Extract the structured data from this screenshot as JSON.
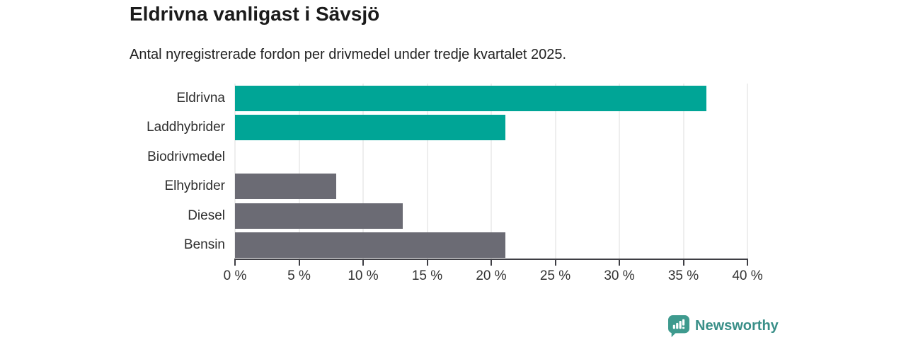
{
  "header": {
    "title": "Eldrivna vanligast i Sävsjö",
    "subtitle": "Antal nyregistrerade fordon per drivmedel under tredje kvartalet 2025."
  },
  "chart_data": {
    "type": "bar",
    "orientation": "horizontal",
    "title": "Eldrivna vanligast i Sävsjö",
    "subtitle": "Antal nyregistrerade fordon per drivmedel under tredje kvartalet 2025.",
    "categories": [
      "Eldrivna",
      "Laddhybrider",
      "Biodrivmedel",
      "Elhybrider",
      "Diesel",
      "Bensin"
    ],
    "values": [
      36.8,
      21.1,
      0,
      7.9,
      13.1,
      21.1
    ],
    "unit": "%",
    "xlim": [
      0,
      40
    ],
    "xticks": [
      0,
      5,
      10,
      15,
      20,
      25,
      30,
      35,
      40
    ],
    "xtick_labels": [
      "0 %",
      "5 %",
      "10 %",
      "15 %",
      "20 %",
      "25 %",
      "30 %",
      "35 %",
      "40 %"
    ],
    "bar_colors": [
      "#00a596",
      "#00a596",
      "#6b6b74",
      "#6b6b74",
      "#6b6b74",
      "#6b6b74"
    ],
    "colors": {
      "highlight": "#00a596",
      "neutral": "#6b6b74",
      "gridline": "#dcdcdc",
      "axis": "#3e3e44"
    },
    "grid": "vertical-gridlines-on",
    "legend": "none",
    "xlabel": "",
    "ylabel": ""
  },
  "footer": {
    "brand": "Newsworthy",
    "logo_icon": "bar-chart-speech-bubble-icon",
    "brand_text_color": "#398f88",
    "logo_icon_color": "#3e9a8e"
  }
}
